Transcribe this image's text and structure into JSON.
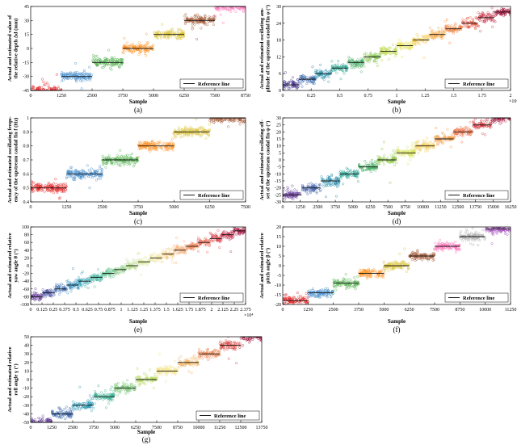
{
  "chart_data": [
    {
      "id": "a",
      "type": "scatter",
      "caption": "(a)",
      "xlabel": "Sample",
      "ylabel": [
        "Actual and estimated value of",
        "the relative depth ∆d (mm)"
      ],
      "xlim": [
        0,
        8750
      ],
      "ylim": [
        -45,
        45
      ],
      "xticks": [
        "0",
        "1250",
        "2500",
        "3750",
        "5000",
        "6250",
        "7500",
        "8750"
      ],
      "yticks": [
        "-45",
        "-30",
        "-15",
        "0",
        "15",
        "30",
        "45"
      ],
      "levels": [
        -45,
        -30,
        -15,
        0,
        15,
        30,
        45
      ],
      "legend": "Reference line",
      "legend_position": "bottom-right",
      "colors": [
        "#e41a1c",
        "#3d87c8",
        "#4daf4a",
        "#ff8c1a",
        "#d9c030",
        "#a0522d",
        "#ff69b4"
      ]
    },
    {
      "id": "b",
      "type": "scatter",
      "caption": "(b)",
      "xlabel": "Sample",
      "ylabel": [
        "Actual and estimated oscillating am-",
        "plitude of the upstream caudal fin φ (°)"
      ],
      "xlim": [
        0,
        20000
      ],
      "ylim": [
        0,
        30
      ],
      "xticks": [
        "0",
        "0.25",
        "0.5",
        "0.75",
        "1",
        "1.25",
        "1.5",
        "1.75",
        "2"
      ],
      "xtick_values": [
        0,
        2500,
        5000,
        7500,
        10000,
        12500,
        15000,
        17500,
        20000
      ],
      "x_multiplier": "×10⁴",
      "yticks": [
        "0",
        "6",
        "12",
        "18",
        "24",
        "30"
      ],
      "ytick_values": [
        0,
        6,
        12,
        18,
        24,
        30
      ],
      "levels": [
        2,
        4,
        6,
        8,
        10,
        12,
        14,
        16,
        18,
        20,
        22,
        24,
        26,
        28
      ],
      "legend": "Reference line",
      "legend_position": "bottom-right",
      "colors": [
        "#3f2a8a",
        "#2d5fa8",
        "#1f8aa6",
        "#1fa08a",
        "#38a65a",
        "#7cc043",
        "#b5d53c",
        "#e6e35a",
        "#f1c84b",
        "#f3a03c",
        "#ec7a34",
        "#e2503a",
        "#c9283e",
        "#a00a36"
      ]
    },
    {
      "id": "c",
      "type": "scatter",
      "caption": "(c)",
      "xlabel": "Sample",
      "ylabel": [
        "Actual and estimated oscillating frequ-",
        "ency of the upstream caudal fin f (Hz)"
      ],
      "xlim": [
        0,
        7500
      ],
      "ylim": [
        0.4,
        1.0
      ],
      "xticks": [
        "0",
        "1250",
        "2500",
        "3750",
        "5000",
        "6250",
        "7500"
      ],
      "yticks": [
        "0.4",
        "0.5",
        "0.6",
        "0.7",
        "0.8",
        "0.9",
        "1"
      ],
      "ytick_values": [
        0.4,
        0.5,
        0.6,
        0.7,
        0.8,
        0.9,
        1.0
      ],
      "levels": [
        0.5,
        0.6,
        0.7,
        0.8,
        0.9,
        1.0
      ],
      "legend": "Reference line",
      "legend_position": "bottom-right",
      "colors": [
        "#e41a1c",
        "#3d87c8",
        "#4daf4a",
        "#ff8c1a",
        "#d9c030",
        "#a0522d"
      ]
    },
    {
      "id": "d",
      "type": "scatter",
      "caption": "(d)",
      "xlabel": "Sample",
      "ylabel": [
        "Actual and estimated oscillating off-",
        "set of the upstream caudal fin ψ (°)"
      ],
      "xlim": [
        0,
        16250
      ],
      "ylim": [
        -30,
        30
      ],
      "xticks": [
        "0",
        "1250",
        "2500",
        "3750",
        "5000",
        "6250",
        "7500",
        "8750",
        "10000",
        "11250",
        "12500",
        "13750",
        "15000",
        "16250"
      ],
      "yticks": [
        "-30",
        "-25",
        "-20",
        "-15",
        "-10",
        "-5",
        "0",
        "5",
        "10",
        "15",
        "20",
        "25",
        "30"
      ],
      "ytick_values": [
        -30,
        -25,
        -20,
        -15,
        -10,
        -5,
        0,
        5,
        10,
        15,
        20,
        25,
        30
      ],
      "levels": [
        -25,
        -20,
        -15,
        -10,
        -5,
        0,
        5,
        10,
        15,
        20,
        25,
        30
      ],
      "legend": "Reference line",
      "legend_position": "bottom-right",
      "colors": [
        "#5b2c91",
        "#3a5ca8",
        "#2088a8",
        "#1fa08f",
        "#3aa95a",
        "#8cc646",
        "#d4e04d",
        "#f0c84a",
        "#f2963a",
        "#e9653a",
        "#d3343c",
        "#a00a36"
      ]
    },
    {
      "id": "e",
      "type": "scatter",
      "caption": "(e)",
      "xlabel": "Sample",
      "ylabel": [
        "Actual and estimated relative",
        "yaw angle θ (°)"
      ],
      "xlim": [
        0,
        23750
      ],
      "ylim": [
        -100,
        100
      ],
      "xticks": [
        "0",
        "0.125",
        "0.25",
        "0.375",
        "0.5",
        "0.625",
        "0.75",
        "0.875",
        "1",
        "1.125",
        "1.25",
        "1.375",
        "1.5",
        "1.625",
        "1.75",
        "1.875",
        "2",
        "2.125",
        "2.25",
        "2.375"
      ],
      "x_multiplier": "×10⁴",
      "yticks": [
        "-100",
        "-80",
        "-60",
        "-40",
        "-20",
        "0",
        "20",
        "40",
        "60",
        "80",
        "100"
      ],
      "ytick_values": [
        -100,
        -80,
        -60,
        -40,
        -20,
        0,
        20,
        40,
        60,
        80,
        100
      ],
      "levels": [
        -80,
        -70,
        -60,
        -50,
        -40,
        -30,
        -20,
        -10,
        0,
        10,
        20,
        30,
        40,
        50,
        60,
        70,
        80,
        90
      ],
      "legend": "Reference line",
      "legend_position": "bottom-right",
      "colors": [
        "#5a2d91",
        "#4750a3",
        "#3b6fb3",
        "#2d8aba",
        "#26a0b0",
        "#3bb39a",
        "#5ec08a",
        "#8cca85",
        "#b7d98a",
        "#dde89b",
        "#f1e59a",
        "#f5c97c",
        "#f4a766",
        "#ef8657",
        "#e6604c",
        "#d83e49",
        "#c02243",
        "#a00a36"
      ]
    },
    {
      "id": "f",
      "type": "scatter",
      "caption": "(f)",
      "xlabel": "Sample",
      "ylabel": [
        "Actual and estimated relative",
        "pitch angle β (°)"
      ],
      "xlim": [
        0,
        11250
      ],
      "ylim": [
        -20,
        20
      ],
      "xticks": [
        "0",
        "1250",
        "2500",
        "3750",
        "5000",
        "6250",
        "7500",
        "8750",
        "10000",
        "11250"
      ],
      "yticks": [
        "-20",
        "-15",
        "-10",
        "-5",
        "0",
        "5",
        "10",
        "15",
        "20"
      ],
      "ytick_values": [
        -20,
        -15,
        -10,
        -5,
        0,
        5,
        10,
        15,
        20
      ],
      "levels": [
        -18,
        -14,
        -9,
        -4,
        0,
        5,
        10,
        15,
        19
      ],
      "legend": "Reference line",
      "legend_position": "bottom-right",
      "colors": [
        "#e41a1c",
        "#3d87c8",
        "#4daf4a",
        "#ff8c1a",
        "#d9c030",
        "#a0522d",
        "#ff69b4",
        "#a6a6a6",
        "#9c47b5"
      ]
    },
    {
      "id": "g",
      "type": "scatter",
      "caption": "(g)",
      "xlabel": "Sample",
      "ylabel": [
        "Actual and estimated relative",
        "roll angle γ (°)"
      ],
      "xlim": [
        0,
        13750
      ],
      "ylim": [
        -50,
        50
      ],
      "xticks": [
        "0",
        "1250",
        "2500",
        "3750",
        "5000",
        "6250",
        "7500",
        "8750",
        "10000",
        "11250",
        "12500",
        "13750"
      ],
      "yticks": [
        "-50",
        "-40",
        "-30",
        "-20",
        "-10",
        "0",
        "10",
        "20",
        "30",
        "40",
        "50"
      ],
      "ytick_values": [
        -50,
        -40,
        -30,
        -20,
        -10,
        0,
        10,
        20,
        30,
        40,
        50
      ],
      "levels": [
        -50,
        -40,
        -30,
        -20,
        -10,
        0,
        10,
        20,
        30,
        40,
        50
      ],
      "legend": "Reference line",
      "legend_position": "bottom-right",
      "colors": [
        "#5a2d91",
        "#2f5fa8",
        "#2594b0",
        "#30ad8e",
        "#6cc06a",
        "#b3d85a",
        "#f0e07a",
        "#f3b35c",
        "#ea7e48",
        "#d9463f",
        "#a00a36"
      ]
    }
  ]
}
